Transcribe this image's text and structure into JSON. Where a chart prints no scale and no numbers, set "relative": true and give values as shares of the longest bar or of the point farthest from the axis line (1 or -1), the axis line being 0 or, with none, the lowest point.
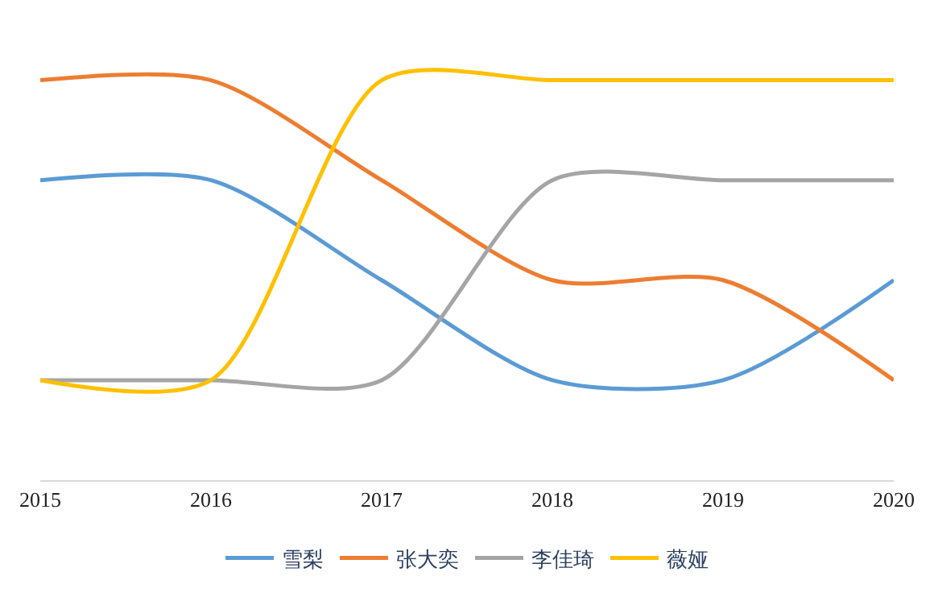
{
  "chart_data": {
    "type": "line",
    "relative": true,
    "x": [
      2015,
      2016,
      2017,
      2018,
      2019,
      2020
    ],
    "xlim": [
      2015,
      2020
    ],
    "xticks": [
      2015,
      2016,
      2017,
      2018,
      2019,
      2020
    ],
    "tick_labels": "x",
    "legend": "bottom",
    "marker": "none",
    "line_style": "solid",
    "series": [
      {
        "name": "雪梨",
        "color": "#5b9bd5",
        "values": [
          0.75,
          0.75,
          0.5,
          0.25,
          0.25,
          0.5
        ]
      },
      {
        "name": "张大奕",
        "color": "#ed7d31",
        "values": [
          1,
          1,
          0.75,
          0.5,
          0.5,
          0.25
        ]
      },
      {
        "name": "李佳琦",
        "color": "#a5a5a5",
        "values": [
          0.25,
          0.25,
          0.25,
          0.75,
          0.75,
          0.75
        ]
      },
      {
        "name": "薇娅",
        "color": "#ffc000",
        "values": [
          0.25,
          0.25,
          1,
          1,
          1,
          1
        ]
      }
    ]
  }
}
